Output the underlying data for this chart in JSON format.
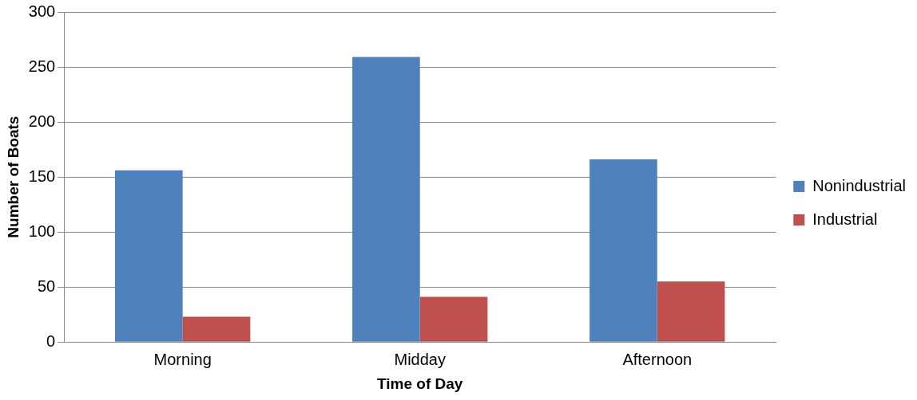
{
  "chart_data": {
    "type": "bar",
    "xlabel": "Time of Day",
    "ylabel": "Number of Boats",
    "categories": [
      "Morning",
      "Midday",
      "Afternoon"
    ],
    "series": [
      {
        "name": "Nonindustrial",
        "color": "#4f81bd",
        "values": [
          156,
          259,
          166
        ]
      },
      {
        "name": "Industrial",
        "color": "#c0504d",
        "values": [
          23,
          41,
          55
        ]
      }
    ],
    "ylim": [
      0,
      300
    ],
    "yticks": [
      0,
      50,
      100,
      150,
      200,
      250,
      300
    ],
    "grid": "y",
    "legend": "right"
  }
}
